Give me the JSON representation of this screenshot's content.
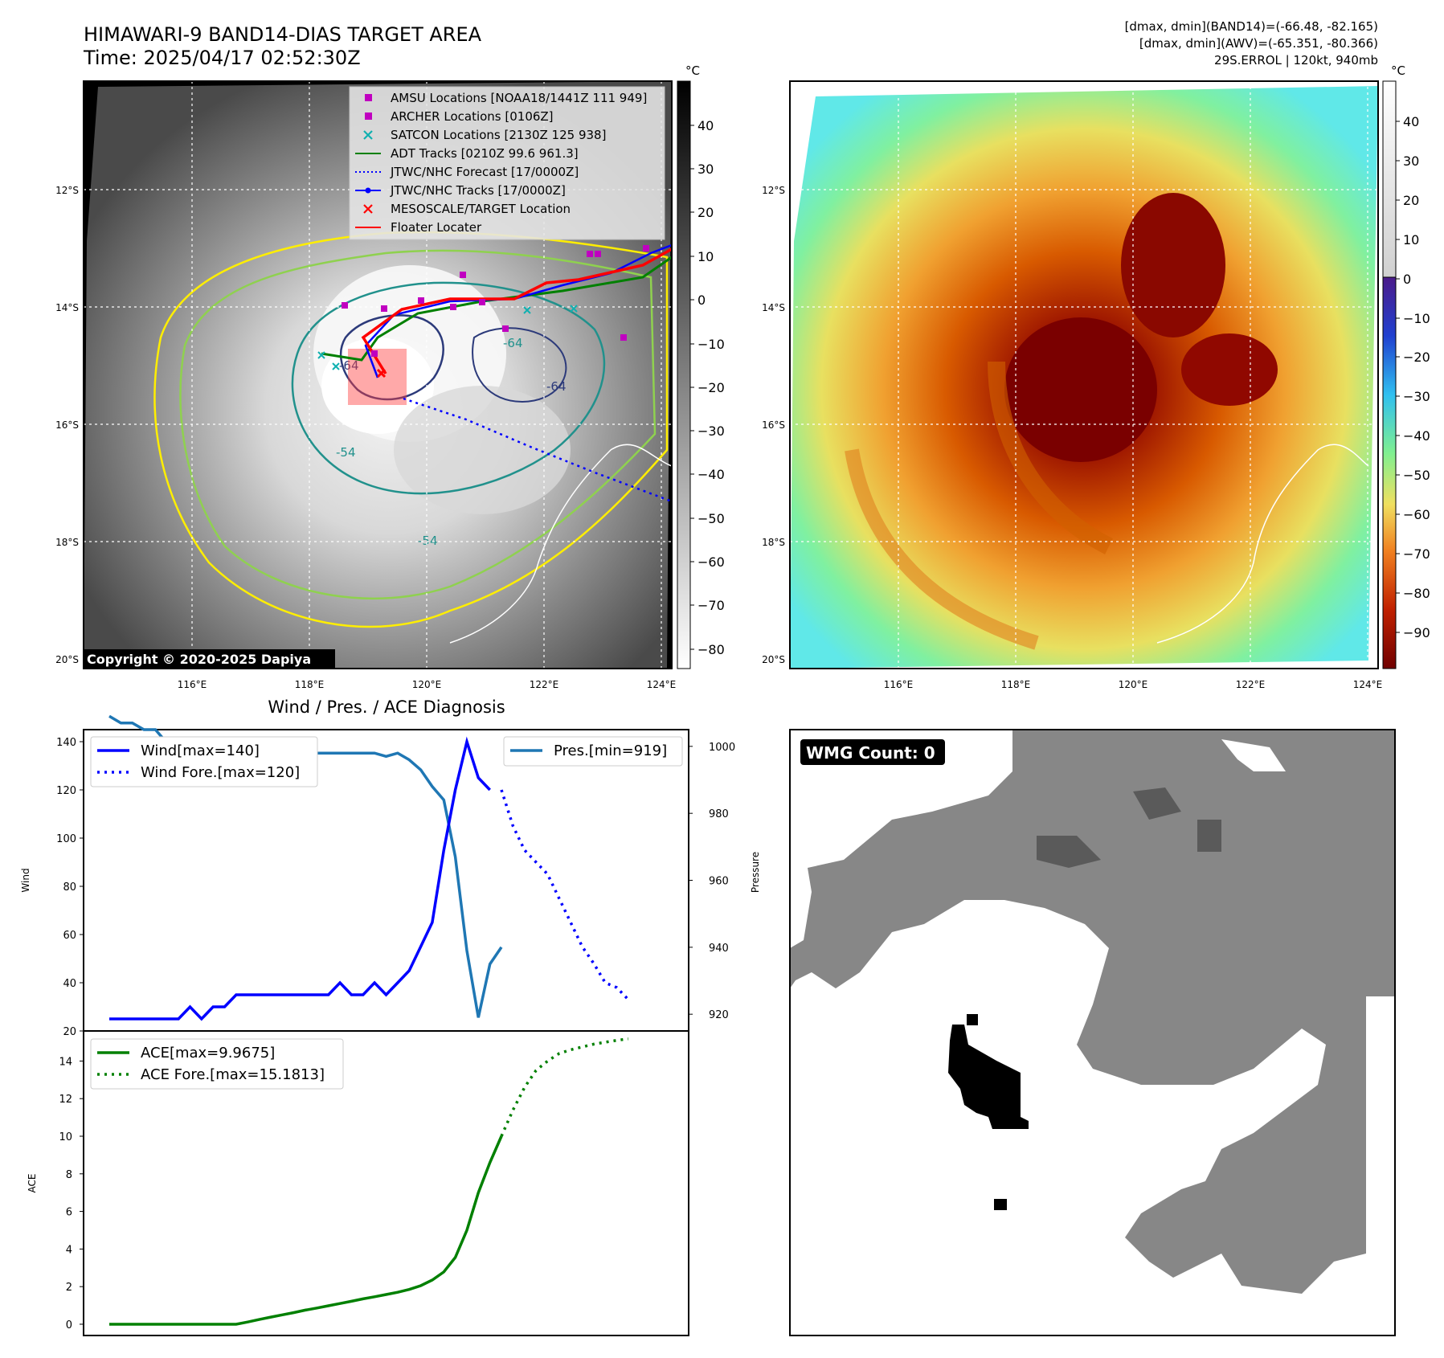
{
  "header": {
    "title": "HIMAWARI-9 BAND14-DIAS TARGET AREA",
    "time": "Time: 2025/04/17 02:52:30Z",
    "dmax_band14": "[dmax, dmin](BAND14)=(-66.48, -82.165)",
    "dmax_awv": "[dmax, dmin](AWV)=(-65.351, -80.366)",
    "storm": "29S.ERROL | 120kt, 940mb"
  },
  "copyright": "Copyright © 2020-2025 Dapiya",
  "map": {
    "lat_labels": [
      "12°S",
      "14°S",
      "16°S",
      "18°S",
      "20°S"
    ],
    "lon_labels": [
      "116°E",
      "118°E",
      "120°E",
      "122°E",
      "124°E"
    ],
    "contour_labels": [
      "-64",
      "-64",
      "-54",
      "-54",
      "-64"
    ],
    "legend": [
      {
        "label": "AMSU Locations [NOAA18/1441Z 111 949]",
        "symbol": "square",
        "color": "#c000c0"
      },
      {
        "label": "ARCHER Locations [0106Z]",
        "symbol": "square",
        "color": "#c000c0"
      },
      {
        "label": "SATCON Locations [2130Z 125 938]",
        "symbol": "x",
        "color": "#10b0b0"
      },
      {
        "label": "ADT Tracks [0210Z 99.6 961.3]",
        "symbol": "line",
        "color": "#008000"
      },
      {
        "label": "JTWC/NHC Forecast [17/0000Z]",
        "symbol": "dotted",
        "color": "#0000ff"
      },
      {
        "label": "JTWC/NHC Tracks [17/0000Z]",
        "symbol": "line-dot",
        "color": "#0000ff"
      },
      {
        "label": "MESOSCALE/TARGET Location",
        "symbol": "x",
        "color": "#ff0000"
      },
      {
        "label": "Floater Locater",
        "symbol": "line",
        "color": "#ff0000"
      }
    ]
  },
  "colorbar_gray": {
    "unit": "°C",
    "ticks": [
      "40",
      "30",
      "20",
      "10",
      "0",
      "−10",
      "−20",
      "−30",
      "−40",
      "−50",
      "−60",
      "−70",
      "−80"
    ]
  },
  "colorbar_color": {
    "unit": "°C",
    "ticks": [
      "40",
      "30",
      "20",
      "10",
      "0",
      "−10",
      "−20",
      "−30",
      "−40",
      "−50",
      "−60",
      "−70",
      "−80",
      "−90"
    ]
  },
  "wmg": {
    "label": "WMG Count: 0"
  },
  "colors": {
    "wind": "#0000ff",
    "pres": "#1f77b4",
    "ace": "#008000"
  },
  "chart_data": [
    {
      "type": "line",
      "title": "Wind / Pres. / ACE Diagnosis",
      "ylabel": "Wind",
      "y2label": "Pressure",
      "ylim": [
        20,
        145
      ],
      "y2lim": [
        915,
        1005
      ],
      "yticks": [
        "140",
        "120",
        "100",
        "80",
        "60",
        "40",
        "20"
      ],
      "y2ticks": [
        "1000",
        "980",
        "960",
        "940",
        "920"
      ],
      "x": [
        0,
        1,
        2,
        3,
        4,
        5,
        6,
        7,
        8,
        9,
        10,
        11,
        12,
        13,
        14,
        15,
        16,
        17,
        18,
        19,
        20,
        21,
        22,
        23,
        24,
        25,
        26,
        27,
        28,
        29,
        30,
        31,
        32,
        33,
        34,
        35,
        36,
        37,
        38,
        39,
        40,
        41,
        42,
        43,
        44,
        45
      ],
      "series": [
        {
          "name": "Wind[max=140]",
          "axis": "left",
          "style": "solid",
          "x": [
            0,
            1,
            2,
            3,
            4,
            5,
            6,
            7,
            8,
            9,
            10,
            11,
            12,
            13,
            14,
            15,
            16,
            17,
            18,
            19,
            20,
            21,
            22,
            23,
            24,
            25,
            26,
            27,
            28,
            29,
            30,
            31,
            32,
            33,
            34
          ],
          "values": [
            25,
            25,
            25,
            25,
            25,
            25,
            25,
            30,
            25,
            30,
            30,
            35,
            35,
            35,
            35,
            35,
            35,
            35,
            35,
            35,
            40,
            35,
            35,
            40,
            35,
            40,
            45,
            55,
            65,
            95,
            120,
            140,
            125,
            120,
            null
          ]
        },
        {
          "name": "Wind Fore.[max=120]",
          "axis": "left",
          "style": "dotted",
          "x": [
            34,
            35,
            36,
            37,
            38,
            39,
            40,
            41,
            42,
            43,
            44,
            45
          ],
          "values": [
            120,
            105,
            95,
            90,
            85,
            75,
            65,
            55,
            48,
            40,
            38,
            33
          ]
        },
        {
          "name": "Pres.[min=919]",
          "axis": "right",
          "style": "solid",
          "x": [
            0,
            1,
            2,
            3,
            4,
            5,
            6,
            7,
            8,
            9,
            10,
            11,
            12,
            13,
            14,
            15,
            16,
            17,
            18,
            19,
            20,
            21,
            22,
            23,
            24,
            25,
            26,
            27,
            28,
            29,
            30,
            31,
            32,
            33,
            34
          ],
          "values": [
            1009,
            1007,
            1007,
            1005,
            1005,
            1001,
            999,
            998,
            999,
            998,
            998,
            998,
            998,
            998,
            998,
            998,
            998,
            998,
            998,
            998,
            998,
            998,
            998,
            998,
            997,
            998,
            996,
            993,
            988,
            984,
            967,
            939,
            919,
            935,
            940
          ]
        }
      ]
    },
    {
      "type": "line",
      "ylabel": "ACE",
      "ylim": [
        -0.6,
        15.6
      ],
      "yticks": [
        "14",
        "12",
        "10",
        "8",
        "6",
        "4",
        "2",
        "0"
      ],
      "series": [
        {
          "name": "ACE[max=9.9675]",
          "style": "solid",
          "x": [
            0,
            1,
            2,
            3,
            4,
            5,
            6,
            7,
            8,
            9,
            10,
            11,
            12,
            13,
            14,
            15,
            16,
            17,
            18,
            19,
            20,
            21,
            22,
            23,
            24,
            25,
            26,
            27,
            28,
            29,
            30,
            31,
            32,
            33,
            34
          ],
          "values": [
            0,
            0,
            0,
            0,
            0,
            0,
            0,
            0,
            0,
            0,
            0,
            0,
            0.12,
            0.25,
            0.38,
            0.5,
            0.62,
            0.75,
            0.86,
            0.98,
            1.1,
            1.22,
            1.35,
            1.46,
            1.58,
            1.7,
            1.85,
            2.05,
            2.35,
            2.78,
            3.55,
            5.0,
            7.0,
            8.6,
            10.0
          ]
        },
        {
          "name": "ACE Fore.[max=15.1813]",
          "style": "dotted",
          "x": [
            34,
            35,
            36,
            37,
            38,
            39,
            40,
            41,
            42,
            43,
            44,
            45
          ],
          "values": [
            10.0,
            11.4,
            12.6,
            13.5,
            14.0,
            14.4,
            14.6,
            14.75,
            14.9,
            15.0,
            15.1,
            15.18
          ]
        }
      ]
    }
  ]
}
